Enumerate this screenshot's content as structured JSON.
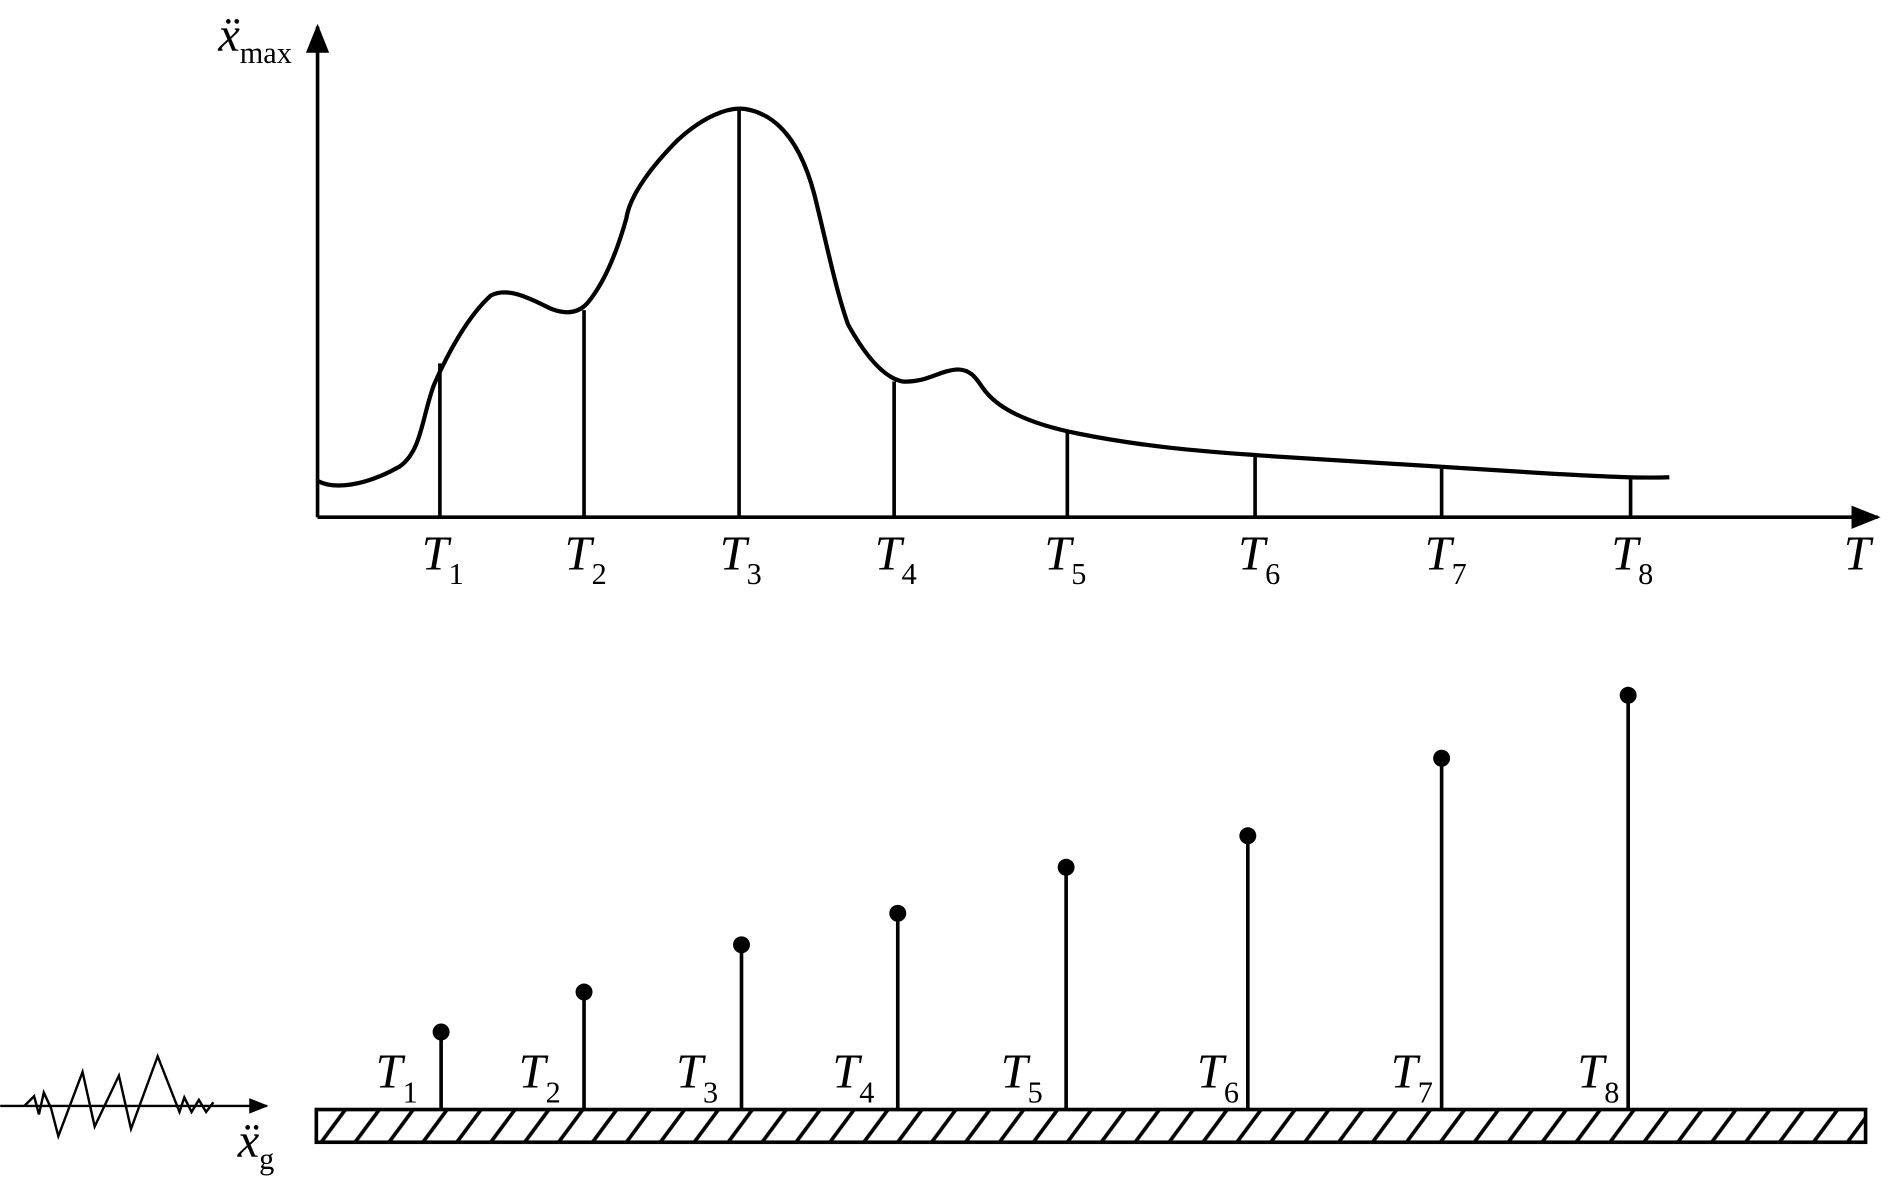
{
  "spectrum": {
    "y_axis_label": {
      "base": "ẍ",
      "sub": "max"
    },
    "x_axis_label": "T",
    "periods": [
      {
        "base": "T",
        "sub": "1"
      },
      {
        "base": "T",
        "sub": "2"
      },
      {
        "base": "T",
        "sub": "3"
      },
      {
        "base": "T",
        "sub": "4"
      },
      {
        "base": "T",
        "sub": "5"
      },
      {
        "base": "T",
        "sub": "6"
      },
      {
        "base": "T",
        "sub": "7"
      },
      {
        "base": "T",
        "sub": "8"
      }
    ]
  },
  "oscillators": {
    "labels": [
      {
        "base": "T",
        "sub": "1"
      },
      {
        "base": "T",
        "sub": "2"
      },
      {
        "base": "T",
        "sub": "3"
      },
      {
        "base": "T",
        "sub": "4"
      },
      {
        "base": "T",
        "sub": "5"
      },
      {
        "base": "T",
        "sub": "6"
      },
      {
        "base": "T",
        "sub": "7"
      },
      {
        "base": "T",
        "sub": "8"
      }
    ],
    "ground_label": {
      "base": "ẍ",
      "sub": "g"
    }
  }
}
